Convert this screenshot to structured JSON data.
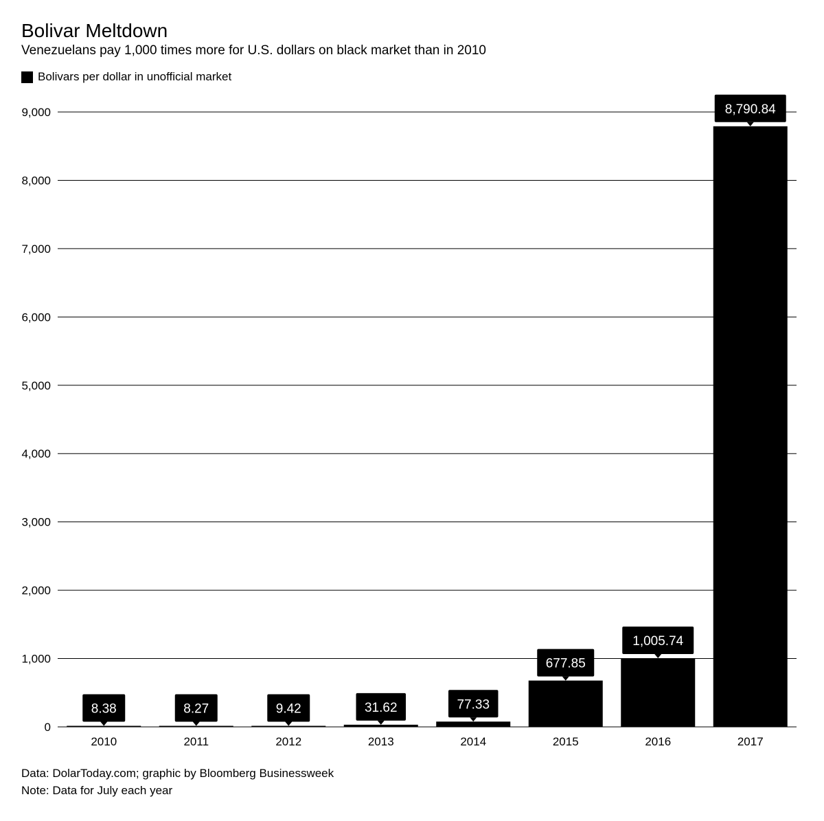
{
  "header": {
    "title": "Bolivar Meltdown",
    "subtitle": "Venezuelans pay 1,000 times more for U.S. dollars on black market than in 2010"
  },
  "legend": {
    "label": "Bolivars per dollar in unofficial market",
    "color": "#000000"
  },
  "footer": {
    "source": "Data: DolarToday.com; graphic by Bloomberg Businessweek",
    "note": "Note: Data for July each year"
  },
  "chart_data": {
    "type": "bar",
    "title": "Bolivar Meltdown",
    "subtitle": "Venezuelans pay 1,000 times more for U.S. dollars on black market than in 2010",
    "categories": [
      "2010",
      "2011",
      "2012",
      "2013",
      "2014",
      "2015",
      "2016",
      "2017"
    ],
    "series": [
      {
        "name": "Bolivars per dollar in unofficial market",
        "values": [
          8.38,
          8.27,
          9.42,
          31.62,
          77.33,
          677.85,
          1005.74,
          8790.84
        ],
        "labels": [
          "8.38",
          "8.27",
          "9.42",
          "31.62",
          "77.33",
          "677.85",
          "1,005.74",
          "8,790.84"
        ],
        "color": "#000000"
      }
    ],
    "xlabel": "",
    "ylabel": "",
    "ylim": [
      0,
      9000
    ],
    "yticks": [
      0,
      1000,
      2000,
      3000,
      4000,
      5000,
      6000,
      7000,
      8000,
      9000
    ],
    "ytick_labels": [
      "0",
      "1,000",
      "2,000",
      "3,000",
      "4,000",
      "5,000",
      "6,000",
      "7,000",
      "8,000",
      "9,000"
    ],
    "grid": true,
    "legend_position": "top-left"
  }
}
